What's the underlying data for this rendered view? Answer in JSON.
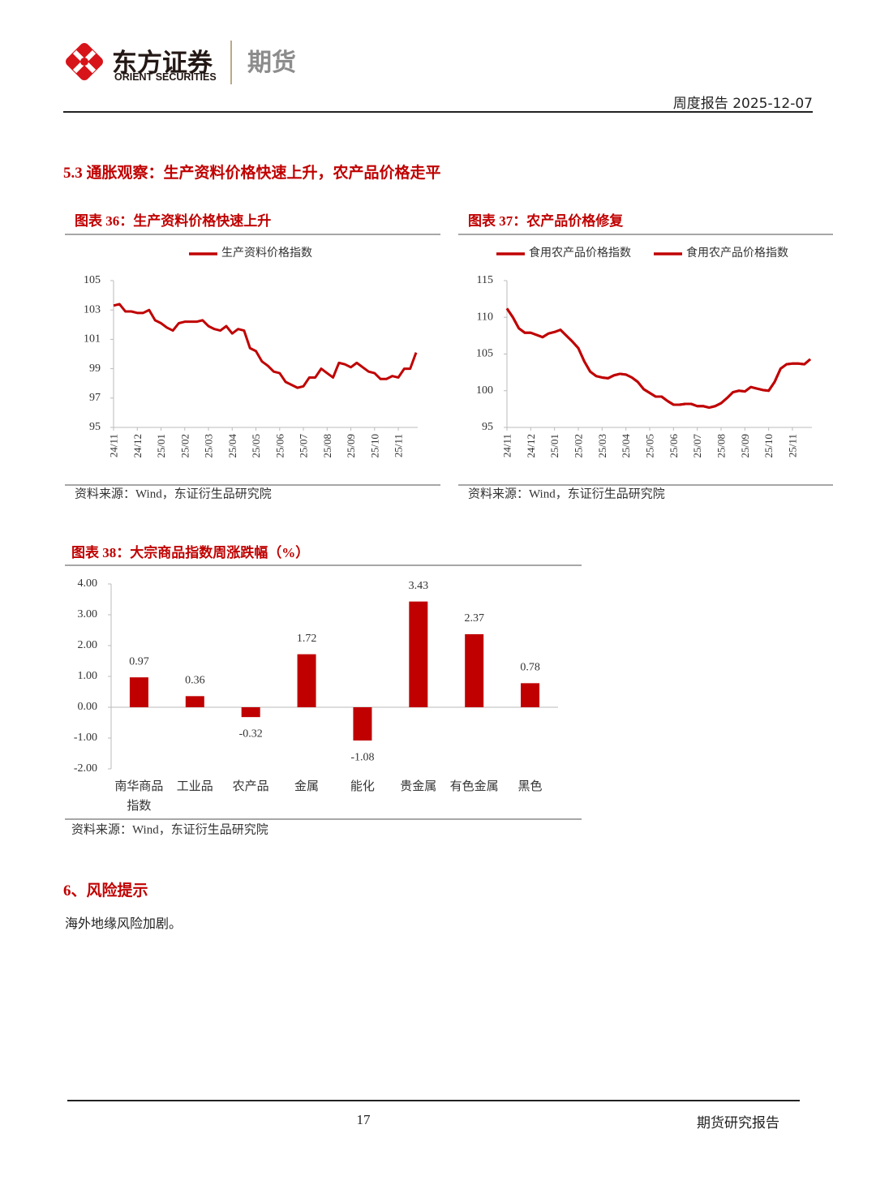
{
  "header": {
    "brand_cn": "东方证券",
    "brand_en": "ORIENT SECURITIES",
    "division": "期货",
    "report": "周度报告 2025-12-07"
  },
  "section_title": "5.3 通胀观察：生产资料价格快速上升，农产品价格走平",
  "chart_data": [
    {
      "type": "line",
      "title": "图表 36：生产资料价格快速上升",
      "source": "资料来源：Wind，东证衍生品研究院",
      "categories": [
        "24/11",
        null,
        null,
        null,
        "24/12",
        null,
        null,
        null,
        "25/01",
        null,
        null,
        null,
        "25/02",
        null,
        null,
        null,
        "25/03",
        null,
        null,
        null,
        "25/04",
        null,
        null,
        null,
        "25/05",
        null,
        null,
        null,
        "25/06",
        null,
        null,
        null,
        "25/07",
        null,
        null,
        null,
        "25/08",
        null,
        null,
        null,
        "25/09",
        null,
        null,
        null,
        "25/10",
        null,
        null,
        null,
        "25/11",
        null,
        null,
        null
      ],
      "series": [
        {
          "name": "生产资料价格指数",
          "color": "#c00000",
          "values": [
            103.3,
            103.4,
            102.9,
            102.9,
            102.8,
            102.8,
            103.0,
            102.3,
            102.1,
            101.8,
            101.6,
            102.1,
            102.2,
            102.2,
            102.2,
            102.3,
            101.9,
            101.7,
            101.6,
            101.9,
            101.4,
            101.7,
            101.6,
            100.4,
            100.2,
            99.5,
            99.2,
            98.8,
            98.7,
            98.1,
            97.9,
            97.7,
            97.8,
            98.4,
            98.4,
            99.0,
            98.7,
            98.4,
            99.4,
            99.3,
            99.1,
            99.4,
            99.1,
            98.8,
            98.7,
            98.3,
            98.3,
            98.5,
            98.4,
            99.0,
            99.0,
            100.1
          ]
        }
      ],
      "ylim": [
        95,
        105
      ],
      "yticks": [
        95,
        97,
        99,
        101,
        103,
        105
      ],
      "legend": "top",
      "grid": false
    },
    {
      "type": "line",
      "title": "图表 37：农产品价格修复",
      "source": "资料来源：Wind，东证衍生品研究院",
      "categories": [
        "24/11",
        null,
        null,
        null,
        "24/12",
        null,
        null,
        null,
        "25/01",
        null,
        null,
        null,
        "25/02",
        null,
        null,
        null,
        "25/03",
        null,
        null,
        null,
        "25/04",
        null,
        null,
        null,
        "25/05",
        null,
        null,
        null,
        "25/06",
        null,
        null,
        null,
        "25/07",
        null,
        null,
        null,
        "25/08",
        null,
        null,
        null,
        "25/09",
        null,
        null,
        null,
        "25/10",
        null,
        null,
        null,
        "25/11",
        null,
        null,
        null
      ],
      "series": [
        {
          "name": "食用农产品价格指数",
          "color": "#c00000",
          "values": [
            111.2,
            110.0,
            108.5,
            107.9,
            107.9,
            107.6,
            107.3,
            107.8,
            108.0,
            108.3,
            107.5,
            106.7,
            105.8,
            104.0,
            102.6,
            102.0,
            101.8,
            101.7,
            102.1,
            102.3,
            102.2,
            101.8,
            101.2,
            100.2,
            99.7,
            99.2,
            99.2,
            98.6,
            98.1,
            98.1,
            98.2,
            98.2,
            97.9,
            97.9,
            97.7,
            97.9,
            98.3,
            99.0,
            99.8,
            100.0,
            99.9,
            100.5,
            100.3,
            100.1,
            100.0,
            101.2,
            103.0,
            103.6,
            103.7,
            103.7,
            103.6,
            104.3
          ]
        },
        {
          "name": "食用农产品价格指数",
          "color": "#c00000",
          "values": [
            111.2,
            110.0,
            108.5,
            107.9,
            107.9,
            107.6,
            107.3,
            107.8,
            108.0,
            108.3,
            107.5,
            106.7,
            105.8,
            104.0,
            102.6,
            102.0,
            101.8,
            101.7,
            102.1,
            102.3,
            102.2,
            101.8,
            101.2,
            100.2,
            99.7,
            99.2,
            99.2,
            98.6,
            98.1,
            98.1,
            98.2,
            98.2,
            97.9,
            97.9,
            97.7,
            97.9,
            98.3,
            99.0,
            99.8,
            100.0,
            99.9,
            100.5,
            100.3,
            100.1,
            100.0,
            101.2,
            103.0,
            103.6,
            103.7,
            103.7,
            103.6,
            104.3
          ]
        }
      ],
      "ylim": [
        95,
        115
      ],
      "yticks": [
        95,
        100,
        105,
        110,
        115
      ],
      "legend": "top",
      "grid": false
    },
    {
      "type": "bar",
      "title": "图表 38：大宗商品指数周涨跌幅（%）",
      "source": "资料来源：Wind，东证衍生品研究院",
      "categories": [
        "南华商品指数",
        "工业品",
        "农产品",
        "金属",
        "能化",
        "贵金属",
        "有色金属",
        "黑色"
      ],
      "values": [
        0.97,
        0.36,
        -0.32,
        1.72,
        -1.08,
        3.43,
        2.37,
        0.78
      ],
      "color": "#c00000",
      "ylim": [
        -2,
        4
      ],
      "yticks": [
        {
          "value": -2,
          "label": "-2.00"
        },
        {
          "value": -1,
          "label": "-1.00"
        },
        {
          "value": 0,
          "label": "0.00"
        },
        {
          "value": 1,
          "label": "1.00"
        },
        {
          "value": 2,
          "label": "2.00"
        },
        {
          "value": 3,
          "label": "3.00"
        },
        {
          "value": 4,
          "label": "4.00"
        }
      ],
      "grid": false
    }
  ],
  "risk": {
    "heading": "6、风险提示",
    "text": "海外地缘风险加剧。"
  },
  "footer": {
    "page": "17",
    "label": "期货研究报告"
  }
}
